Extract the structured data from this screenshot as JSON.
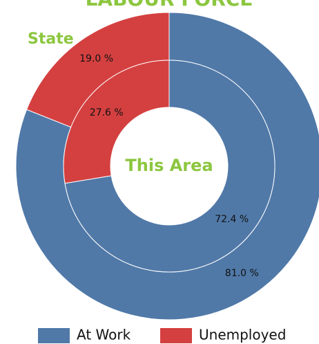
{
  "chart_data": {
    "type": "donut",
    "title": "LABOUR FORCE",
    "categories": [
      "At Work",
      "Unemployed"
    ],
    "colors": [
      "#5079a8",
      "#d44040"
    ],
    "series": [
      {
        "name": "State",
        "values": [
          81.0,
          19.0
        ],
        "value_labels": [
          "81.0 %",
          "19.0 %"
        ]
      },
      {
        "name": "This Area",
        "values": [
          72.4,
          27.6
        ],
        "value_labels": [
          "72.4 %",
          "27.6 %"
        ]
      }
    ]
  }
}
